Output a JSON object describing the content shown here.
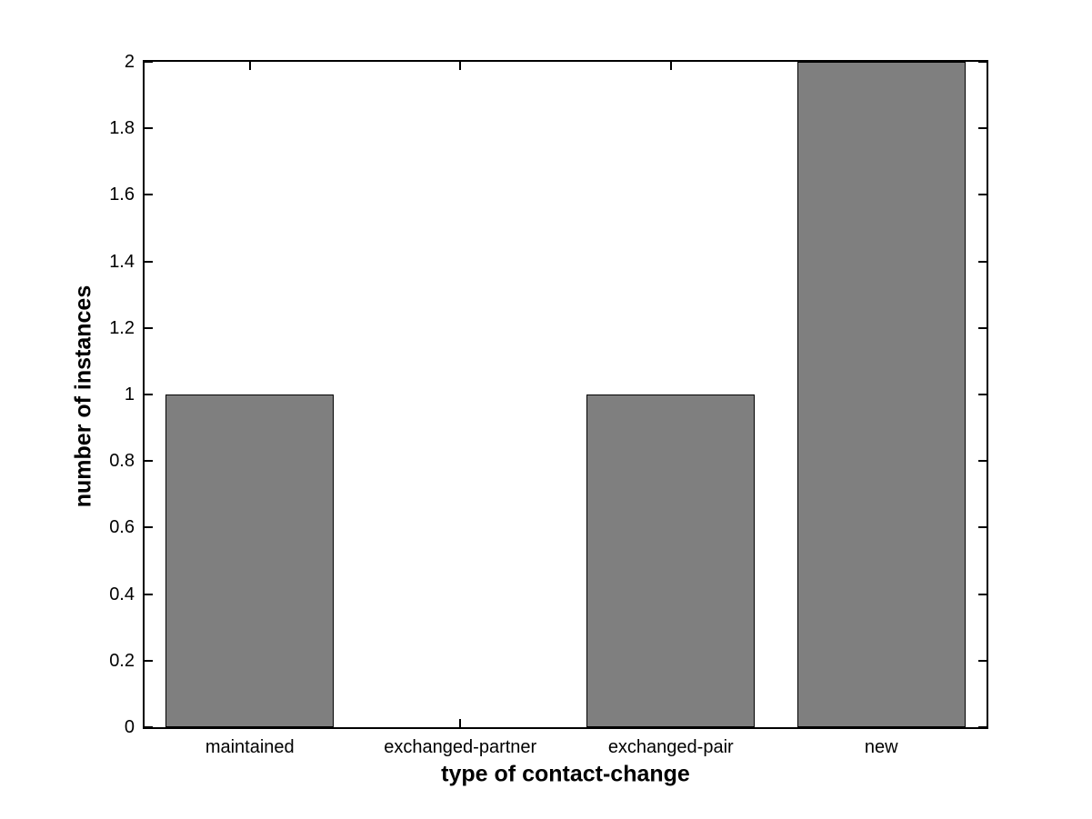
{
  "figure": {
    "background": "#ffffff"
  },
  "chart_data": {
    "type": "bar",
    "categories": [
      "maintained",
      "exchanged-partner",
      "exchanged-pair",
      "new"
    ],
    "values": [
      1,
      0,
      1,
      2
    ],
    "xlabel": "type of contact-change",
    "ylabel": "number of instances",
    "ylim": [
      0,
      2
    ],
    "xlim": [
      0.5,
      4.5
    ],
    "x_positions": [
      1,
      2,
      3,
      4
    ],
    "yticks": [
      0,
      0.2,
      0.4,
      0.6,
      0.8,
      1,
      1.2,
      1.4,
      1.6,
      1.8,
      2
    ],
    "ytick_labels": [
      "0",
      "0.2",
      "0.4",
      "0.6",
      "0.8",
      "1",
      "1.2",
      "1.4",
      "1.6",
      "1.8",
      "2"
    ],
    "bar_width_units": 0.8,
    "bar_fill_color": "#7f7f7f",
    "bar_edge_color": "#000000",
    "axis_color": "#000000",
    "text_color": "#000000",
    "grid": false,
    "legend_position": "none",
    "tick_direction": "in",
    "box": true
  }
}
